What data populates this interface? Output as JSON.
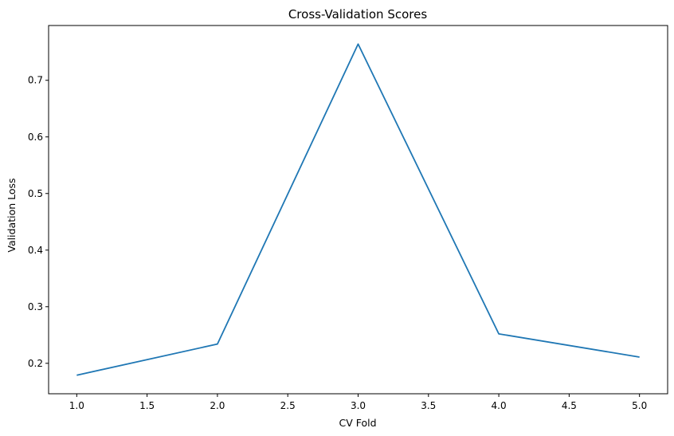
{
  "chart_data": {
    "type": "line",
    "title": "Cross-Validation Scores",
    "xlabel": "CV Fold",
    "ylabel": "Validation Loss",
    "x": [
      1,
      2,
      3,
      4,
      5
    ],
    "series": [
      {
        "values": [
          0.179,
          0.234,
          0.764,
          0.252,
          0.211
        ],
        "color": "#1f77b4"
      }
    ],
    "xlim": [
      0.8,
      5.2
    ],
    "ylim": [
      0.1462,
      0.7968
    ],
    "xticks": [
      "1.0",
      "1.5",
      "2.0",
      "2.5",
      "3.0",
      "3.5",
      "4.0",
      "4.5",
      "5.0"
    ],
    "xtick_values": [
      1.0,
      1.5,
      2.0,
      2.5,
      3.0,
      3.5,
      4.0,
      4.5,
      5.0
    ],
    "yticks": [
      "0.2",
      "0.3",
      "0.4",
      "0.5",
      "0.6",
      "0.7"
    ],
    "ytick_values": [
      0.2,
      0.3,
      0.4,
      0.5,
      0.6,
      0.7
    ],
    "grid": false,
    "legend": "none"
  }
}
